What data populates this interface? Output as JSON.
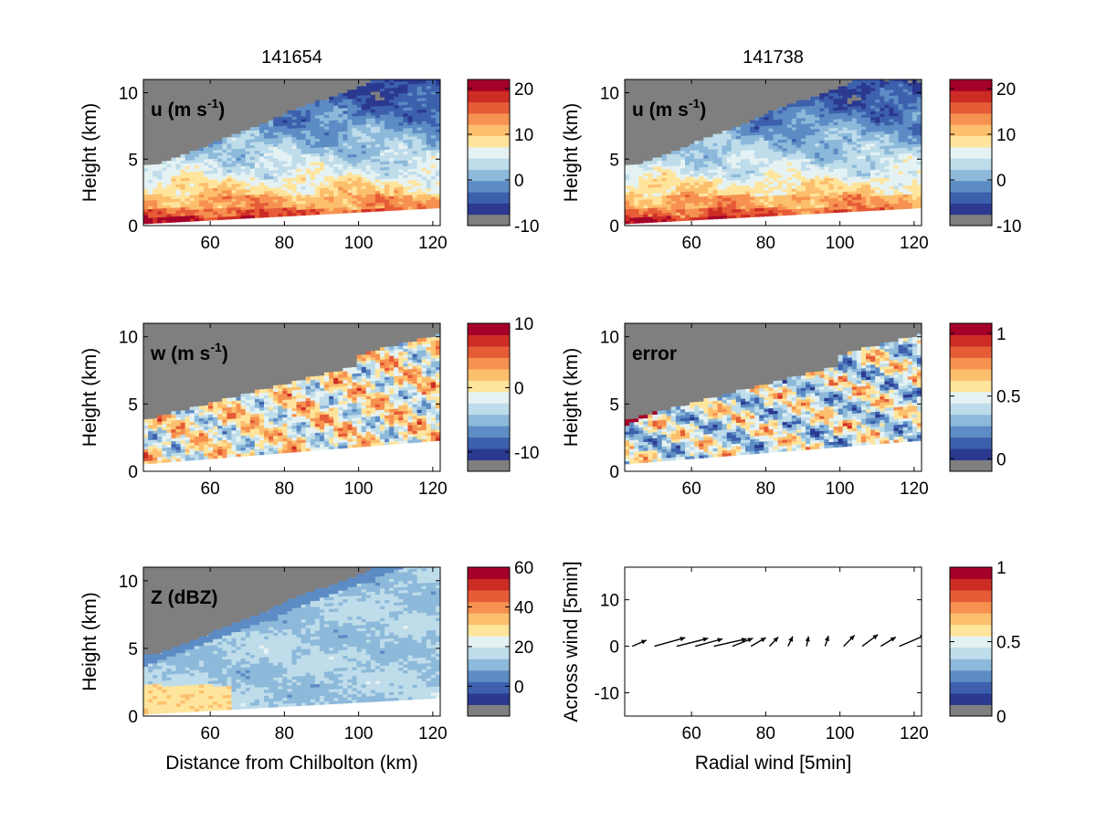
{
  "column_titles": [
    "141654",
    "141738"
  ],
  "colormap": [
    "#7f7f7f",
    "#2b3990",
    "#3d60ad",
    "#5d8cc5",
    "#8db9da",
    "#bedcea",
    "#e5f2f3",
    "#ffe49c",
    "#fcbf6d",
    "#f69150",
    "#e65c37",
    "#cd2c25",
    "#a5002a"
  ],
  "chart_data": [
    {
      "id": "u-141654",
      "type": "heatmap",
      "title": "141654",
      "annotation": "u (m s",
      "annotation_sup": "-1",
      "annotation_close": ")",
      "xlim": [
        42,
        122
      ],
      "ylim": [
        0,
        11
      ],
      "xticks": [
        60,
        80,
        100,
        120
      ],
      "yticks": [
        0,
        5,
        10
      ],
      "ylabel": "Height (km)",
      "xlabel": "",
      "field": "u",
      "colorbar": {
        "range": [
          -10,
          22
        ],
        "ticks": [
          -10,
          0,
          10,
          20
        ]
      }
    },
    {
      "id": "u-141738",
      "type": "heatmap",
      "title": "141738",
      "annotation": "u (m s",
      "annotation_sup": "-1",
      "annotation_close": ")",
      "xlim": [
        42,
        122
      ],
      "ylim": [
        0,
        11
      ],
      "xticks": [
        60,
        80,
        100,
        120
      ],
      "yticks": [
        0,
        5,
        10
      ],
      "ylabel": "Height (km)",
      "xlabel": "",
      "field": "u2",
      "colorbar": {
        "range": [
          -10,
          22
        ],
        "ticks": [
          -10,
          0,
          10,
          20
        ]
      }
    },
    {
      "id": "w",
      "type": "heatmap",
      "title": "",
      "annotation": "w (m s",
      "annotation_sup": "-1",
      "annotation_close": ")",
      "xlim": [
        42,
        122
      ],
      "ylim": [
        0,
        11
      ],
      "xticks": [
        60,
        80,
        100,
        120
      ],
      "yticks": [
        0,
        5,
        10
      ],
      "ylabel": "Height (km)",
      "xlabel": "",
      "field": "w",
      "colorbar": {
        "range": [
          -13,
          10
        ],
        "ticks": [
          -10,
          0,
          10
        ]
      }
    },
    {
      "id": "error",
      "type": "heatmap",
      "title": "",
      "annotation": "error",
      "annotation_sup": "",
      "annotation_close": "",
      "xlim": [
        42,
        122
      ],
      "ylim": [
        0,
        11
      ],
      "xticks": [
        60,
        80,
        100,
        120
      ],
      "yticks": [
        0,
        5,
        10
      ],
      "ylabel": "Height (km)",
      "xlabel": "",
      "field": "err",
      "colorbar": {
        "range": [
          -0.1,
          1.08
        ],
        "ticks": [
          0,
          0.5,
          1
        ]
      }
    },
    {
      "id": "Z",
      "type": "heatmap",
      "title": "",
      "annotation": "Z (dBZ)",
      "annotation_sup": "",
      "annotation_close": "",
      "xlim": [
        42,
        122
      ],
      "ylim": [
        0,
        11
      ],
      "xticks": [
        60,
        80,
        100,
        120
      ],
      "yticks": [
        0,
        5,
        10
      ],
      "ylabel": "Height (km)",
      "xlabel": "Distance from Chilbolton (km)",
      "field": "z",
      "colorbar": {
        "range": [
          -15,
          60
        ],
        "ticks": [
          0,
          20,
          40,
          60
        ]
      }
    },
    {
      "id": "wind",
      "type": "quiver",
      "title": "",
      "xlim": [
        42,
        122
      ],
      "ylim": [
        -15,
        17
      ],
      "xticks": [
        60,
        80,
        100,
        120
      ],
      "yticks": [
        -10,
        0,
        10
      ],
      "ylabel": "Across wind [5min]",
      "xlabel": "Radial wind [5min]",
      "colorbar": {
        "range": [
          0,
          1
        ],
        "ticks": [
          0,
          0.5,
          1
        ]
      },
      "x": [
        44,
        50,
        56,
        61,
        66,
        71,
        76,
        81,
        86,
        91,
        96,
        101,
        106,
        111,
        116
      ],
      "u": [
        2.1,
        4.5,
        4.6,
        4.0,
        4.8,
        3.0,
        2.2,
        1.3,
        0.7,
        0.3,
        0.5,
        1.6,
        2.3,
        2.2,
        3.8
      ],
      "v": [
        1.0,
        1.4,
        1.3,
        1.2,
        1.2,
        1.3,
        1.4,
        1.5,
        1.6,
        1.6,
        1.7,
        1.8,
        1.9,
        1.5,
        1.8
      ]
    }
  ]
}
